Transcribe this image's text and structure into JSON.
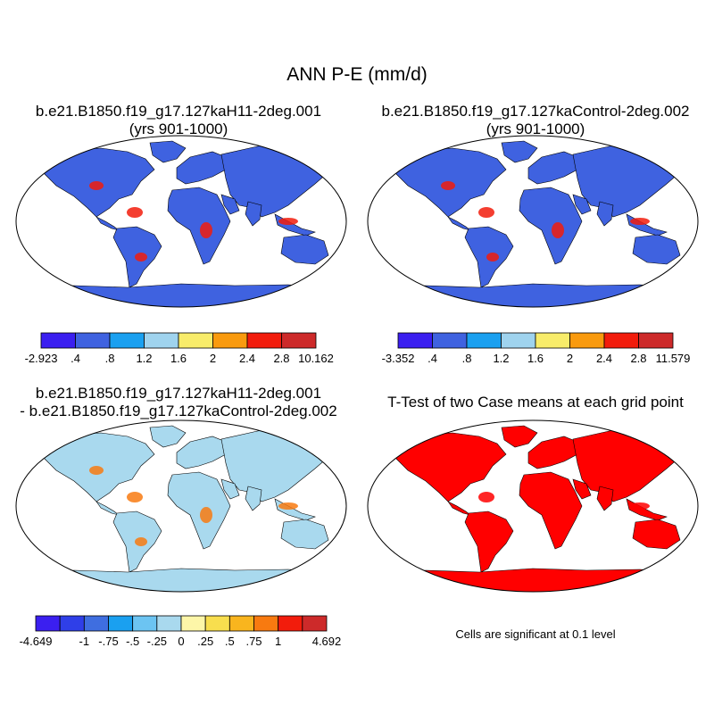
{
  "figure": {
    "title": "ANN P-E (mm/d)"
  },
  "panels": [
    {
      "title_line1": "b.e21.B1850.f19_g17.127kaH11-2deg.001",
      "title_line2": "(yrs 901-1000)"
    },
    {
      "title_line1": "b.e21.B1850.f19_g17.127kaControl-2deg.002",
      "title_line2": "(yrs 901-1000)"
    },
    {
      "title_line1": "b.e21.B1850.f19_g17.127kaH11-2deg.001",
      "title_line2": "- b.e21.B1850.f19_g17.127kaControl-2deg.002"
    },
    {
      "title_line1": "T-Test of two Case means at each grid point",
      "title_line2": ""
    }
  ],
  "colorbars": [
    {
      "name": "case1",
      "labels": [
        "-2.923",
        ".4",
        ".8",
        "1.2",
        "1.6",
        "2",
        "2.4",
        "2.8",
        "10.162"
      ],
      "colors": [
        "#3b1ff0",
        "#3f62e0",
        "#1aa0f0",
        "#9fd3ee",
        "#f8ec6a",
        "#f99a0e",
        "#f21c0c",
        "#cd2a2a"
      ]
    },
    {
      "name": "case2",
      "labels": [
        "-3.352",
        ".4",
        ".8",
        "1.2",
        "1.6",
        "2",
        "2.4",
        "2.8",
        "11.579"
      ],
      "colors": [
        "#3b1ff0",
        "#3f62e0",
        "#1aa0f0",
        "#9fd3ee",
        "#f8ec6a",
        "#f99a0e",
        "#f21c0c",
        "#cd2a2a"
      ]
    },
    {
      "name": "difference",
      "labels": [
        "-4.649",
        "",
        "-1",
        "-.75",
        "-.5",
        "-.25",
        "0",
        ".25",
        ".5",
        ".75",
        "1",
        "",
        "4.692"
      ],
      "colors": [
        "#3b1ff0",
        "#2f3fe8",
        "#3f6ee0",
        "#1aa0f0",
        "#6cc4f2",
        "#a9d9ee",
        "#fdf6a8",
        "#f8de4e",
        "#f9b51e",
        "#f87a10",
        "#f21c0c",
        "#cd2a2a"
      ]
    }
  ],
  "ttest": {
    "note": "Cells are significant at 0.1 level",
    "color": "#ff0000"
  }
}
